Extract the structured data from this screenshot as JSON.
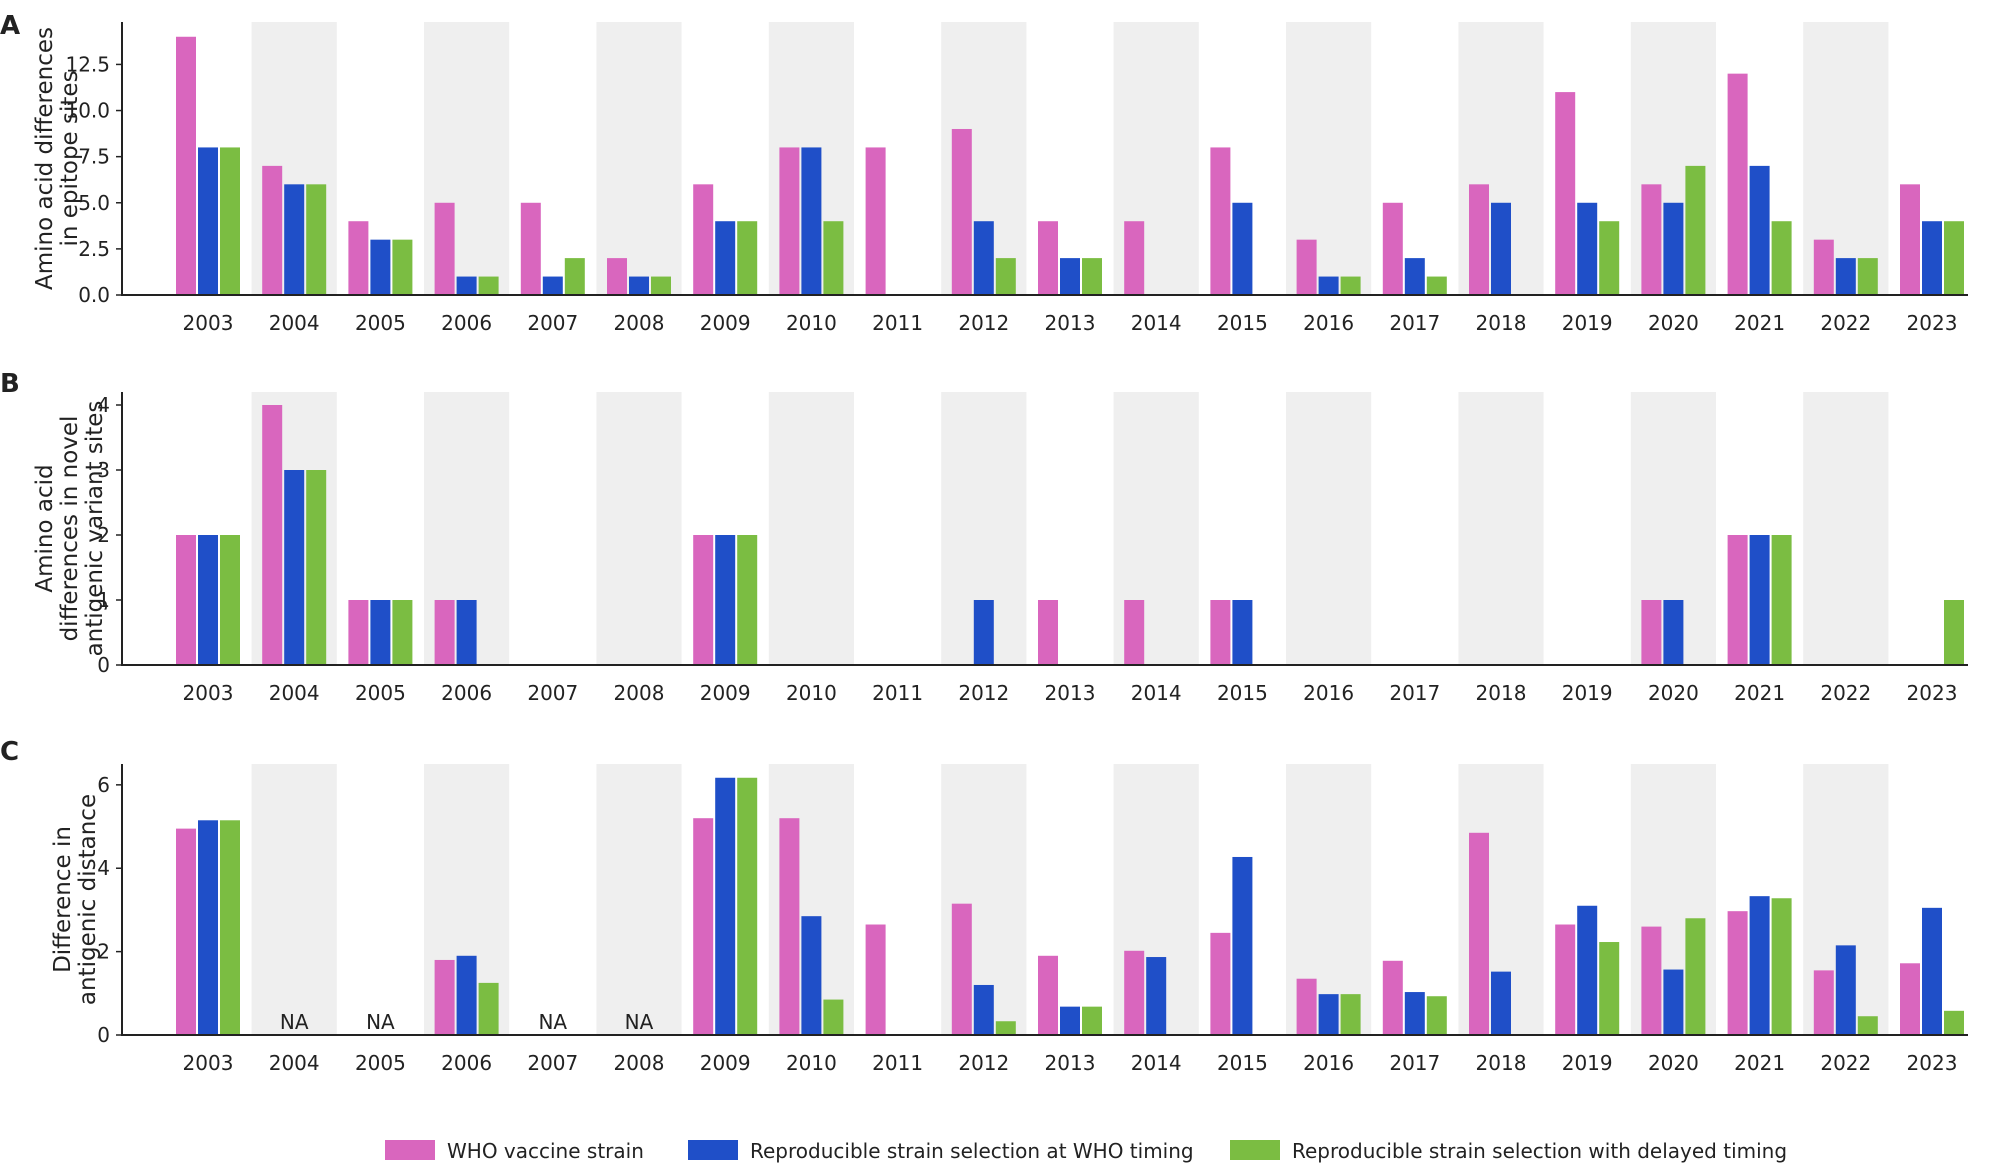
{
  "colors": {
    "who": "#d966be",
    "who_timing": "#1f4fc8",
    "delayed": "#7bbd42",
    "shade": "#efefef"
  },
  "legend": [
    {
      "key": "who",
      "label": "WHO vaccine strain"
    },
    {
      "key": "who_timing",
      "label": "Reproducible strain selection at WHO timing"
    },
    {
      "key": "delayed",
      "label": "Reproducible strain selection with delayed timing"
    }
  ],
  "chart_data": [
    {
      "panel": "A",
      "type": "bar",
      "ylabel": [
        "Amino acid differences",
        "in epitope sites"
      ],
      "ylim": [
        0,
        14.8
      ],
      "yticks": [
        "0.0",
        "2.5",
        "5.0",
        "7.5",
        "10.0",
        "12.5"
      ],
      "categories": [
        "2003",
        "2004",
        "2005",
        "2006",
        "2007",
        "2008",
        "2009",
        "2010",
        "2011",
        "2012",
        "2013",
        "2014",
        "2015",
        "2016",
        "2017",
        "2018",
        "2019",
        "2020",
        "2021",
        "2022",
        "2023"
      ],
      "series": [
        {
          "key": "who",
          "name": "WHO vaccine strain",
          "values": [
            14,
            7,
            4,
            5,
            5,
            2,
            6,
            8,
            8,
            9,
            4,
            4,
            8,
            3,
            5,
            6,
            11,
            6,
            12,
            3,
            6
          ]
        },
        {
          "key": "who_timing",
          "name": "Reproducible strain selection at WHO timing",
          "values": [
            8,
            6,
            3,
            1,
            1,
            1,
            4,
            8,
            0,
            4,
            2,
            0,
            5,
            1,
            2,
            5,
            5,
            5,
            7,
            2,
            4
          ]
        },
        {
          "key": "delayed",
          "name": "Reproducible strain selection with delayed timing",
          "values": [
            8,
            6,
            3,
            1,
            2,
            1,
            4,
            4,
            0,
            2,
            2,
            0,
            0,
            1,
            1,
            0,
            4,
            7,
            4,
            2,
            4
          ]
        }
      ],
      "na_labels": [],
      "shaded_years": [
        "2004",
        "2006",
        "2008",
        "2010",
        "2012",
        "2014",
        "2016",
        "2018",
        "2020",
        "2022"
      ],
      "grid": false
    },
    {
      "panel": "B",
      "type": "bar",
      "ylabel": [
        "Amino acid",
        "differences in novel",
        "antigenic variant sites"
      ],
      "ylim": [
        0,
        4.2
      ],
      "yticks": [
        "0",
        "1",
        "2",
        "3",
        "4"
      ],
      "categories": [
        "2003",
        "2004",
        "2005",
        "2006",
        "2007",
        "2008",
        "2009",
        "2010",
        "2011",
        "2012",
        "2013",
        "2014",
        "2015",
        "2016",
        "2017",
        "2018",
        "2019",
        "2020",
        "2021",
        "2022",
        "2023"
      ],
      "series": [
        {
          "key": "who",
          "name": "WHO vaccine strain",
          "values": [
            2,
            4,
            1,
            1,
            0,
            0,
            2,
            0,
            0,
            0,
            1,
            1,
            1,
            0,
            0,
            0,
            0,
            1,
            2,
            0,
            0
          ]
        },
        {
          "key": "who_timing",
          "name": "Reproducible strain selection at WHO timing",
          "values": [
            2,
            3,
            1,
            1,
            0,
            0,
            2,
            0,
            0,
            1,
            0,
            0,
            1,
            0,
            0,
            0,
            0,
            1,
            2,
            0,
            0
          ]
        },
        {
          "key": "delayed",
          "name": "Reproducible strain selection with delayed timing",
          "values": [
            2,
            3,
            1,
            0,
            0,
            0,
            2,
            0,
            0,
            0,
            0,
            0,
            0,
            0,
            0,
            0,
            0,
            0,
            2,
            0,
            1
          ]
        }
      ],
      "na_labels": [],
      "shaded_years": [
        "2004",
        "2006",
        "2008",
        "2010",
        "2012",
        "2014",
        "2016",
        "2018",
        "2020",
        "2022"
      ],
      "grid": false
    },
    {
      "panel": "C",
      "type": "bar",
      "ylabel": [
        "Difference in",
        "antigenic distance"
      ],
      "ylim": [
        0,
        6.5
      ],
      "yticks": [
        "0",
        "2",
        "4",
        "6"
      ],
      "categories": [
        "2003",
        "2004",
        "2005",
        "2006",
        "2007",
        "2008",
        "2009",
        "2010",
        "2011",
        "2012",
        "2013",
        "2014",
        "2015",
        "2016",
        "2017",
        "2018",
        "2019",
        "2020",
        "2021",
        "2022",
        "2023"
      ],
      "series": [
        {
          "key": "who",
          "name": "WHO vaccine strain",
          "values": [
            4.95,
            null,
            null,
            1.8,
            null,
            null,
            5.2,
            5.2,
            2.65,
            3.15,
            1.9,
            2.02,
            2.45,
            1.35,
            1.78,
            4.85,
            2.65,
            2.6,
            2.97,
            1.55,
            1.72
          ]
        },
        {
          "key": "who_timing",
          "name": "Reproducible strain selection at WHO timing",
          "values": [
            5.15,
            null,
            null,
            1.9,
            null,
            null,
            6.17,
            2.85,
            0,
            1.2,
            0.68,
            1.87,
            4.27,
            0.98,
            1.03,
            1.52,
            3.1,
            1.57,
            3.33,
            2.15,
            3.05
          ]
        },
        {
          "key": "delayed",
          "name": "Reproducible strain selection with delayed timing",
          "values": [
            5.15,
            null,
            null,
            1.25,
            null,
            null,
            6.17,
            0.85,
            0,
            0.33,
            0.68,
            0,
            0,
            0.98,
            0.93,
            0,
            2.23,
            2.8,
            3.28,
            0.45,
            0.58
          ]
        }
      ],
      "na_labels": [
        "NA",
        "NA",
        "NA",
        "NA"
      ],
      "na_years": [
        "2004",
        "2005",
        "2007",
        "2008"
      ],
      "shaded_years": [
        "2004",
        "2006",
        "2008",
        "2010",
        "2012",
        "2014",
        "2016",
        "2018",
        "2020",
        "2022"
      ],
      "grid": false
    }
  ]
}
